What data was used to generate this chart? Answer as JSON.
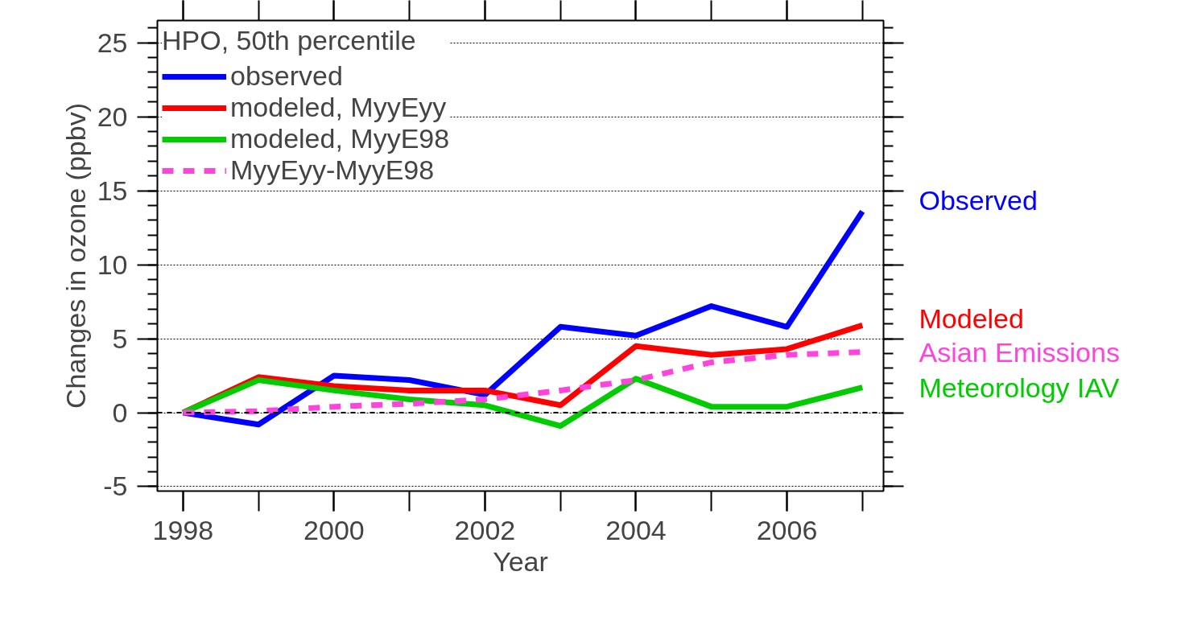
{
  "chart_data": {
    "type": "line",
    "xlabel": "Year",
    "ylabel": "Changes in ozone (ppbv)",
    "legend_title": "HPO, 50th percentile",
    "x": [
      1998,
      1999,
      2000,
      2001,
      2002,
      2003,
      2004,
      2005,
      2006,
      2007
    ],
    "series": [
      {
        "name": "observed",
        "color": "#0000ff",
        "values": [
          0,
          -0.8,
          2.5,
          2.2,
          1.2,
          5.8,
          5.2,
          7.2,
          5.8,
          13.6
        ]
      },
      {
        "name": "modeled, MyyEyy",
        "color": "#ff0000",
        "values": [
          0,
          2.4,
          1.8,
          1.5,
          1.5,
          0.5,
          4.5,
          3.9,
          4.3,
          5.9
        ]
      },
      {
        "name": "modeled, MyyE98",
        "color": "#00cc00",
        "values": [
          0,
          2.2,
          1.5,
          0.9,
          0.5,
          -0.9,
          2.3,
          0.4,
          0.4,
          1.7
        ]
      },
      {
        "name": "MyyEyy-MyyE98",
        "color": "#ff44dd",
        "line_style": "dashed",
        "values": [
          0,
          0.1,
          0.4,
          0.6,
          0.9,
          1.5,
          2.2,
          3.4,
          3.9,
          4.1
        ]
      }
    ],
    "xlim": [
      1997.66,
      2007.28
    ],
    "ylim": [
      -5.3,
      26.5
    ],
    "xticks": [
      1998,
      2000,
      2002,
      2004,
      2006
    ],
    "yticks": [
      -5,
      0,
      5,
      10,
      15,
      20,
      25
    ],
    "grid": "y",
    "legend": "top left",
    "marker": "none",
    "line_style": "solid",
    "ref_lines": [
      {
        "axis": "y",
        "value": 0,
        "label": null,
        "color": "#000000",
        "line_style": "dashed"
      }
    ],
    "annotations": [
      "Observed",
      "Modeled",
      "Asian Emissions",
      "Meteorology IAV"
    ]
  }
}
